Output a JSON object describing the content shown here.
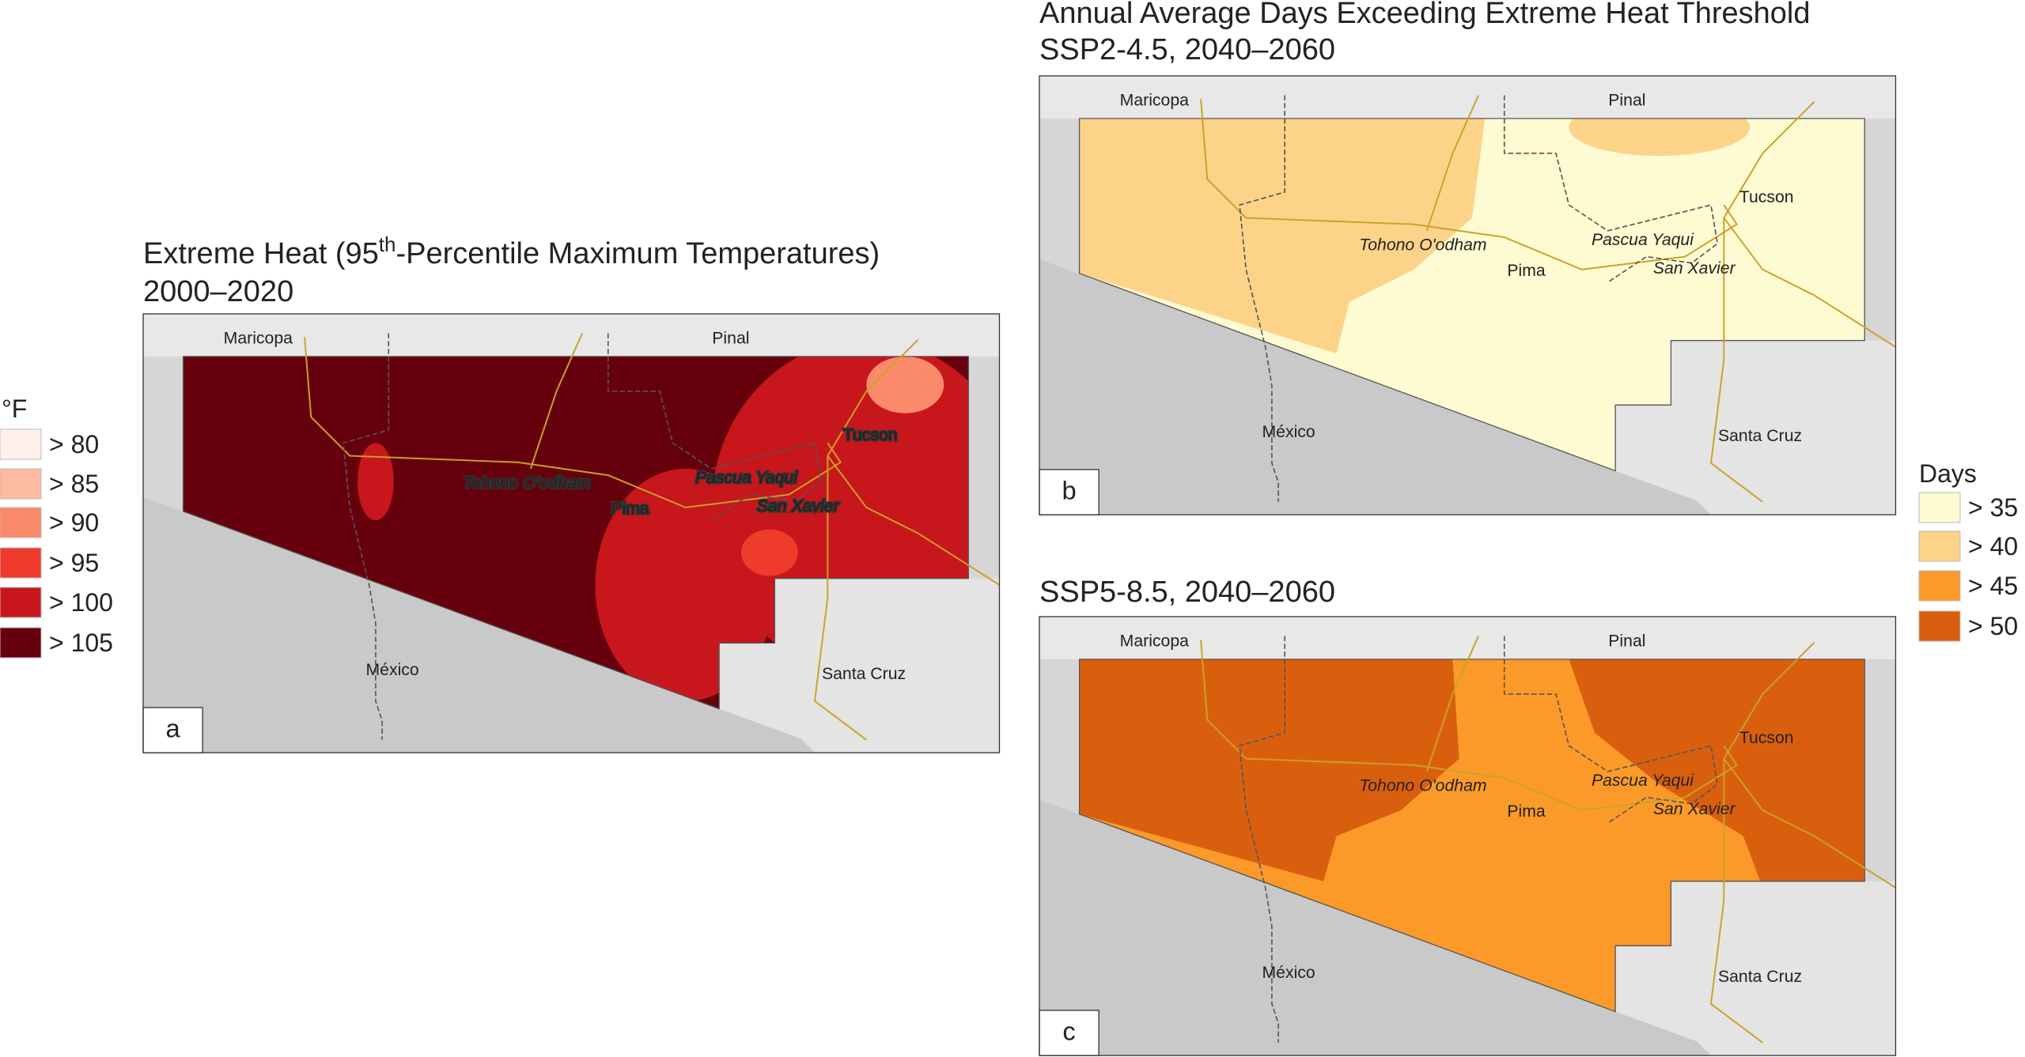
{
  "temperature_legend": {
    "title": "°F",
    "items": [
      {
        "label": "> 80",
        "color": "#fff0ec"
      },
      {
        "label": "> 85",
        "color": "#fcbba1"
      },
      {
        "label": "> 90",
        "color": "#fb8a6a"
      },
      {
        "label": "> 95",
        "color": "#ef3b2c"
      },
      {
        "label": "> 100",
        "color": "#c8161d"
      },
      {
        "label": "> 105",
        "color": "#67000d"
      }
    ]
  },
  "days_legend": {
    "title": "Days",
    "items": [
      {
        "label": "> 35",
        "color": "#fefad2"
      },
      {
        "label": "> 40",
        "color": "#fdd38a"
      },
      {
        "label": "> 45",
        "color": "#fb9a29"
      },
      {
        "label": "> 50",
        "color": "#d95f0e"
      }
    ]
  },
  "panels": [
    {
      "letter": "a",
      "title": {
        "before": "Extreme Heat (95",
        "sup": "th",
        "after": "-Percentile Maximum Temperatures)"
      },
      "subtitle": "2000–2020",
      "labels": [
        "Maricopa",
        "Pinal",
        "Tucson",
        "Tohono O'odham",
        "Pima",
        "Pascua Yaqui",
        "San Xavier",
        "México",
        "Santa Cruz"
      ]
    },
    {
      "letter": "b",
      "title": "Annual Average Days Exceeding Extreme Heat Threshold",
      "subtitle": "SSP2-4.5, 2040–2060",
      "labels": [
        "Maricopa",
        "Pinal",
        "Tucson",
        "Tohono O'odham",
        "Pima",
        "Pascua Yaqui",
        "San Xavier",
        "México",
        "Santa Cruz"
      ]
    },
    {
      "letter": "c",
      "subtitle": "SSP5-8.5, 2040–2060",
      "labels": [
        "Maricopa",
        "Pinal",
        "Tucson",
        "Tohono O'odham",
        "Pima",
        "Pascua Yaqui",
        "San Xavier",
        "México",
        "Santa Cruz"
      ]
    }
  ]
}
